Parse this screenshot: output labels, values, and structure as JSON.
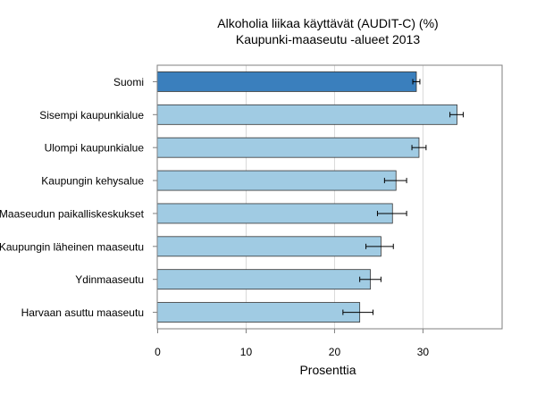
{
  "chart_data": {
    "type": "bar",
    "orientation": "horizontal",
    "title": "Alkoholia liikaa käyttävät (AUDIT-C) (%)",
    "subtitle": "Kaupunki-maaseutu -alueet 2013",
    "xlabel": "Prosenttia",
    "ylabel": "",
    "xlim": [
      0,
      39
    ],
    "xticks": [
      0,
      10,
      20,
      30
    ],
    "grid": "vertical gridlines",
    "legend": "none",
    "categories": [
      "Suomi",
      "Sisempi kaupunkialue",
      "Ulompi kaupunkialue",
      "Kaupungin kehysalue",
      "Maaseudun paikalliskeskukset",
      "Kaupungin läheinen maaseutu",
      "Ydinmaaseutu",
      "Harvaan asuttu maaseutu"
    ],
    "series": [
      {
        "values": [
          29.3,
          33.9,
          29.6,
          27.0,
          26.6,
          25.3,
          24.1,
          22.9
        ],
        "error_low": [
          28.9,
          33.1,
          28.8,
          25.7,
          24.9,
          23.6,
          22.9,
          21.0
        ],
        "error_high": [
          29.7,
          34.6,
          30.4,
          28.2,
          28.2,
          26.7,
          25.3,
          24.4
        ]
      }
    ],
    "colors": {
      "highlight": "#3a7fbd",
      "bar": "#a0cbe3",
      "bar_edge": "#333333",
      "grid": "#d9d9d9"
    }
  }
}
